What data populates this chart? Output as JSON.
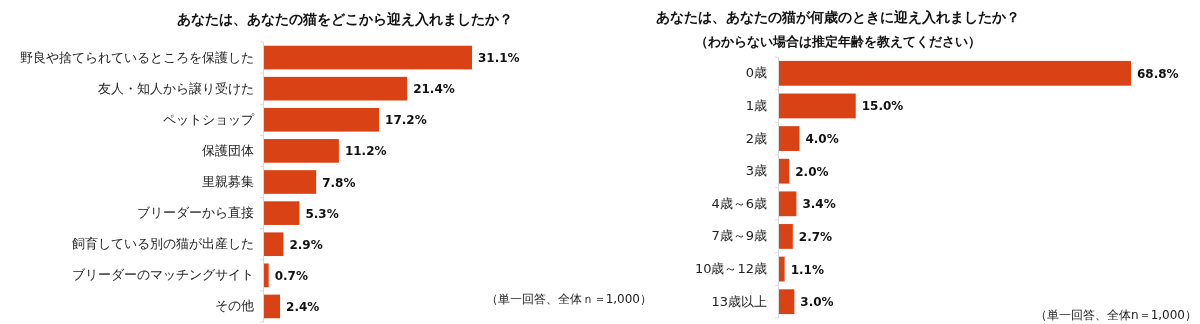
{
  "chart_data": [
    {
      "type": "bar",
      "orientation": "horizontal",
      "title": "あなたは、あなたの猫をどこから迎え入れましたか？",
      "categories": [
        "野良や捨てられているところを保護した",
        "友人・知人から譲り受けた",
        "ペットショップ",
        "保護団体",
        "里親募集",
        "ブリーダーから直接",
        "飼育している別の猫が出産した",
        "ブリーダーのマッチングサイト",
        "その他"
      ],
      "values": [
        31.1,
        21.4,
        17.2,
        11.2,
        7.8,
        5.3,
        2.9,
        0.7,
        2.4
      ],
      "value_labels": [
        "31.1%",
        "21.4%",
        "17.2%",
        "11.2%",
        "7.8%",
        "5.3%",
        "2.9%",
        "0.7%",
        "2.4%"
      ],
      "color": "#d94214",
      "annotations": [
        "（単一回答、全体ｎ＝1,000）"
      ]
    },
    {
      "type": "bar",
      "orientation": "horizontal",
      "title": "あなたは、あなたの猫が何歳のときに迎え入れましたか？",
      "subtitle": "（わからない場合は推定年齢を教えてください）",
      "categories": [
        "0歳",
        "1歳",
        "2歳",
        "3歳",
        "4歳～6歳",
        "7歳～9歳",
        "10歳～12歳",
        "13歳以上"
      ],
      "values": [
        68.8,
        15.0,
        4.0,
        2.0,
        3.4,
        2.7,
        1.1,
        3.0
      ],
      "value_labels": [
        "68.8%",
        "15.0%",
        "4.0%",
        "2.0%",
        "3.4%",
        "2.7%",
        "1.1%",
        "3.0%"
      ],
      "color": "#d94214",
      "annotations": [
        "（単一回答、全体n＝1,000）"
      ]
    }
  ]
}
